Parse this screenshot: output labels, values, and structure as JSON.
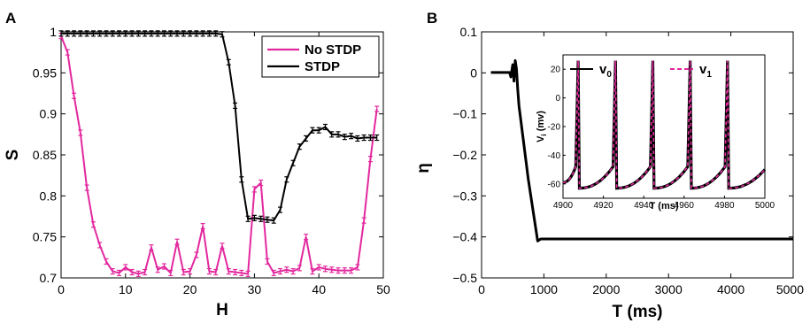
{
  "chart_data": [
    {
      "panel": "A",
      "type": "line",
      "xlabel": "H",
      "ylabel": "S",
      "xlim": [
        0,
        50
      ],
      "ylim": [
        0.7,
        1.0
      ],
      "xticks": [
        "0",
        "10",
        "20",
        "30",
        "40",
        "50"
      ],
      "yticks": [
        "0.7",
        "0.75",
        "0.8",
        "0.85",
        "0.9",
        "0.95",
        "1"
      ],
      "legend": "top-right",
      "series": [
        {
          "name": "No STDP",
          "color": "#e2289e",
          "x": [
            0,
            1,
            2,
            3,
            4,
            5,
            6,
            7,
            8,
            9,
            10,
            11,
            12,
            13,
            14,
            15,
            16,
            17,
            18,
            19,
            20,
            21,
            22,
            23,
            24,
            25,
            26,
            27,
            28,
            29,
            30,
            31,
            32,
            33,
            34,
            35,
            36,
            37,
            38,
            39,
            40,
            41,
            42,
            43,
            44,
            45,
            46,
            47,
            48,
            49
          ],
          "y": [
            0.995,
            0.975,
            0.922,
            0.877,
            0.81,
            0.765,
            0.74,
            0.72,
            0.708,
            0.706,
            0.713,
            0.707,
            0.705,
            0.707,
            0.737,
            0.71,
            0.714,
            0.706,
            0.744,
            0.707,
            0.708,
            0.728,
            0.763,
            0.708,
            0.707,
            0.739,
            0.708,
            0.707,
            0.706,
            0.705,
            0.808,
            0.816,
            0.72,
            0.706,
            0.708,
            0.71,
            0.708,
            0.712,
            0.75,
            0.708,
            0.713,
            0.711,
            0.71,
            0.709,
            0.709,
            0.709,
            0.713,
            0.77,
            0.845,
            0.906
          ]
        },
        {
          "name": "STDP",
          "color": "#000000",
          "x": [
            0,
            1,
            2,
            3,
            4,
            5,
            6,
            7,
            8,
            9,
            10,
            11,
            12,
            13,
            14,
            15,
            16,
            17,
            18,
            19,
            20,
            21,
            22,
            23,
            24,
            25,
            26,
            27,
            28,
            29,
            30,
            31,
            32,
            33,
            34,
            35,
            36,
            37,
            38,
            39,
            40,
            41,
            42,
            43,
            44,
            45,
            46,
            47,
            48,
            49
          ],
          "y": [
            0.998,
            0.998,
            0.998,
            0.998,
            0.998,
            0.998,
            0.998,
            0.998,
            0.998,
            0.998,
            0.998,
            0.998,
            0.998,
            0.998,
            0.998,
            0.998,
            0.998,
            0.998,
            0.998,
            0.998,
            0.998,
            0.998,
            0.998,
            0.998,
            0.998,
            0.997,
            0.963,
            0.91,
            0.82,
            0.772,
            0.773,
            0.772,
            0.771,
            0.77,
            0.783,
            0.82,
            0.84,
            0.86,
            0.87,
            0.88,
            0.88,
            0.884,
            0.875,
            0.875,
            0.872,
            0.873,
            0.87,
            0.871,
            0.871,
            0.871
          ]
        }
      ]
    },
    {
      "panel": "B",
      "type": "line",
      "xlabel": "T (ms)",
      "ylabel": "η",
      "xlim": [
        0,
        5000
      ],
      "ylim": [
        -0.5,
        0.1
      ],
      "xticks": [
        "0",
        "1000",
        "2000",
        "3000",
        "4000",
        "5000"
      ],
      "yticks": [
        "−0.5",
        "−0.4",
        "−0.3",
        "−0.2",
        "−0.1",
        "0",
        "0.1"
      ],
      "series": [
        {
          "name": "",
          "color": "#000000",
          "x": [
            150,
            450,
            470,
            500,
            520,
            540,
            560,
            580,
            600,
            650,
            700,
            750,
            800,
            850,
            900,
            950,
            5000
          ],
          "y": [
            0.001,
            0.001,
            -0.01,
            0.02,
            -0.02,
            0.03,
            0.01,
            -0.04,
            -0.08,
            -0.14,
            -0.2,
            -0.26,
            -0.31,
            -0.36,
            -0.41,
            -0.405,
            -0.405
          ]
        }
      ],
      "inset": {
        "xlabel": "T (ms)",
        "ylabel": "V (mv)",
        "ylabel_subscript": "i",
        "xlim": [
          4900,
          5000
        ],
        "ylim": [
          -70,
          30
        ],
        "xticks": [
          "4900",
          "4920",
          "4940",
          "4960",
          "4980",
          "5000"
        ],
        "yticks": [
          "-60",
          "-40",
          "-20",
          "0",
          "20"
        ],
        "spike_times": [
          4907.5,
          4926,
          4944.5,
          4963,
          4981.5
        ],
        "spike_peak": 26,
        "reset": -63,
        "pre_spike": -48,
        "legend": [
          {
            "name": "v",
            "subscript": "0",
            "color": "#000000",
            "dash": "solid"
          },
          {
            "name": "v",
            "subscript": "1",
            "color": "#e2289e",
            "dash": "dashed"
          }
        ]
      }
    }
  ]
}
